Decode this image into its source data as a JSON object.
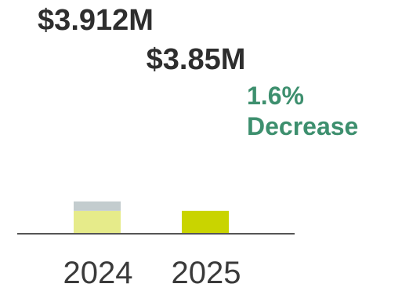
{
  "chart_data": {
    "type": "bar",
    "title": "",
    "xlabel": "",
    "ylabel": "",
    "categories": [
      "2024",
      "2025"
    ],
    "values": [
      3.912,
      3.85
    ],
    "value_labels": [
      "$3.912M",
      "$3.85M"
    ],
    "unit": "$M",
    "change": {
      "percent_text": "1.6%",
      "direction_text": "Decrease"
    },
    "colors": {
      "bar_2024": "#e6eb8a",
      "bar_2024_difference": "#c3ccce",
      "bar_2025": "#c9d400",
      "change_text": "#3d8f6e",
      "axis": "#555555",
      "value_text": "#2e2e2e",
      "tick_text": "#3a3a3a"
    },
    "grid": false,
    "legend": "none"
  }
}
